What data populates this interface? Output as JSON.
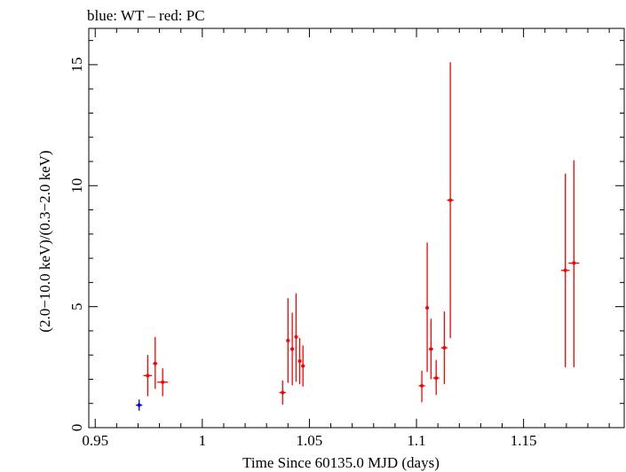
{
  "chart_data": {
    "type": "scatter",
    "title": "blue: WT – red: PC",
    "xlabel": "Time Since 60135.0 MJD (days)",
    "ylabel": "(2.0−10.0 keV)/(0.3−2.0 keV)",
    "xlim": [
      0.947,
      1.197
    ],
    "ylim": [
      0,
      16.5
    ],
    "x_ticks": [
      {
        "value": 0.95,
        "label": "0.95"
      },
      {
        "value": 1.0,
        "label": "1"
      },
      {
        "value": 1.05,
        "label": "1.05"
      },
      {
        "value": 1.1,
        "label": "1.1"
      },
      {
        "value": 1.15,
        "label": "1.15"
      }
    ],
    "y_ticks": [
      {
        "value": 0,
        "label": "0"
      },
      {
        "value": 5,
        "label": "5"
      },
      {
        "value": 10,
        "label": "10"
      },
      {
        "value": 15,
        "label": "15"
      }
    ],
    "x_minor_step": 0.01,
    "y_minor_step": 1,
    "series": [
      {
        "name": "WT",
        "color": "#0000ff",
        "points": [
          {
            "x": 0.9705,
            "xerr": 0.0015,
            "y": 0.93,
            "ylo": 0.7,
            "yhi": 1.16
          }
        ]
      },
      {
        "name": "PC",
        "color": "#ff0000",
        "points": [
          {
            "x": 0.9745,
            "xerr": 0.002,
            "y": 2.15,
            "ylo": 1.3,
            "yhi": 3.0
          },
          {
            "x": 0.978,
            "xerr": 0.001,
            "y": 2.65,
            "ylo": 1.6,
            "yhi": 3.75
          },
          {
            "x": 0.9815,
            "xerr": 0.0025,
            "y": 1.88,
            "ylo": 1.3,
            "yhi": 2.45
          },
          {
            "x": 1.0375,
            "xerr": 0.0015,
            "y": 1.45,
            "ylo": 0.95,
            "yhi": 1.95
          },
          {
            "x": 1.04,
            "xerr": 0.0008,
            "y": 3.6,
            "ylo": 1.85,
            "yhi": 5.35
          },
          {
            "x": 1.042,
            "xerr": 0.0008,
            "y": 3.25,
            "ylo": 1.75,
            "yhi": 4.75
          },
          {
            "x": 1.0438,
            "xerr": 0.0008,
            "y": 3.75,
            "ylo": 1.9,
            "yhi": 5.55
          },
          {
            "x": 1.0455,
            "xerr": 0.0008,
            "y": 2.75,
            "ylo": 1.8,
            "yhi": 3.7
          },
          {
            "x": 1.047,
            "xerr": 0.0008,
            "y": 2.55,
            "ylo": 1.7,
            "yhi": 3.4
          },
          {
            "x": 1.1025,
            "xerr": 0.0015,
            "y": 1.73,
            "ylo": 1.05,
            "yhi": 2.35
          },
          {
            "x": 1.105,
            "xerr": 0.0008,
            "y": 4.95,
            "ylo": 2.3,
            "yhi": 7.65
          },
          {
            "x": 1.1068,
            "xerr": 0.001,
            "y": 3.25,
            "ylo": 2.0,
            "yhi": 4.5
          },
          {
            "x": 1.1092,
            "xerr": 0.0015,
            "y": 2.05,
            "ylo": 1.35,
            "yhi": 2.8
          },
          {
            "x": 1.113,
            "xerr": 0.0015,
            "y": 3.3,
            "ylo": 1.8,
            "yhi": 4.8
          },
          {
            "x": 1.1158,
            "xerr": 0.0015,
            "y": 9.4,
            "ylo": 3.7,
            "yhi": 15.1
          },
          {
            "x": 1.1695,
            "xerr": 0.002,
            "y": 6.5,
            "ylo": 2.5,
            "yhi": 10.5
          },
          {
            "x": 1.1735,
            "xerr": 0.0025,
            "y": 6.8,
            "ylo": 2.5,
            "yhi": 11.05
          }
        ]
      }
    ]
  }
}
